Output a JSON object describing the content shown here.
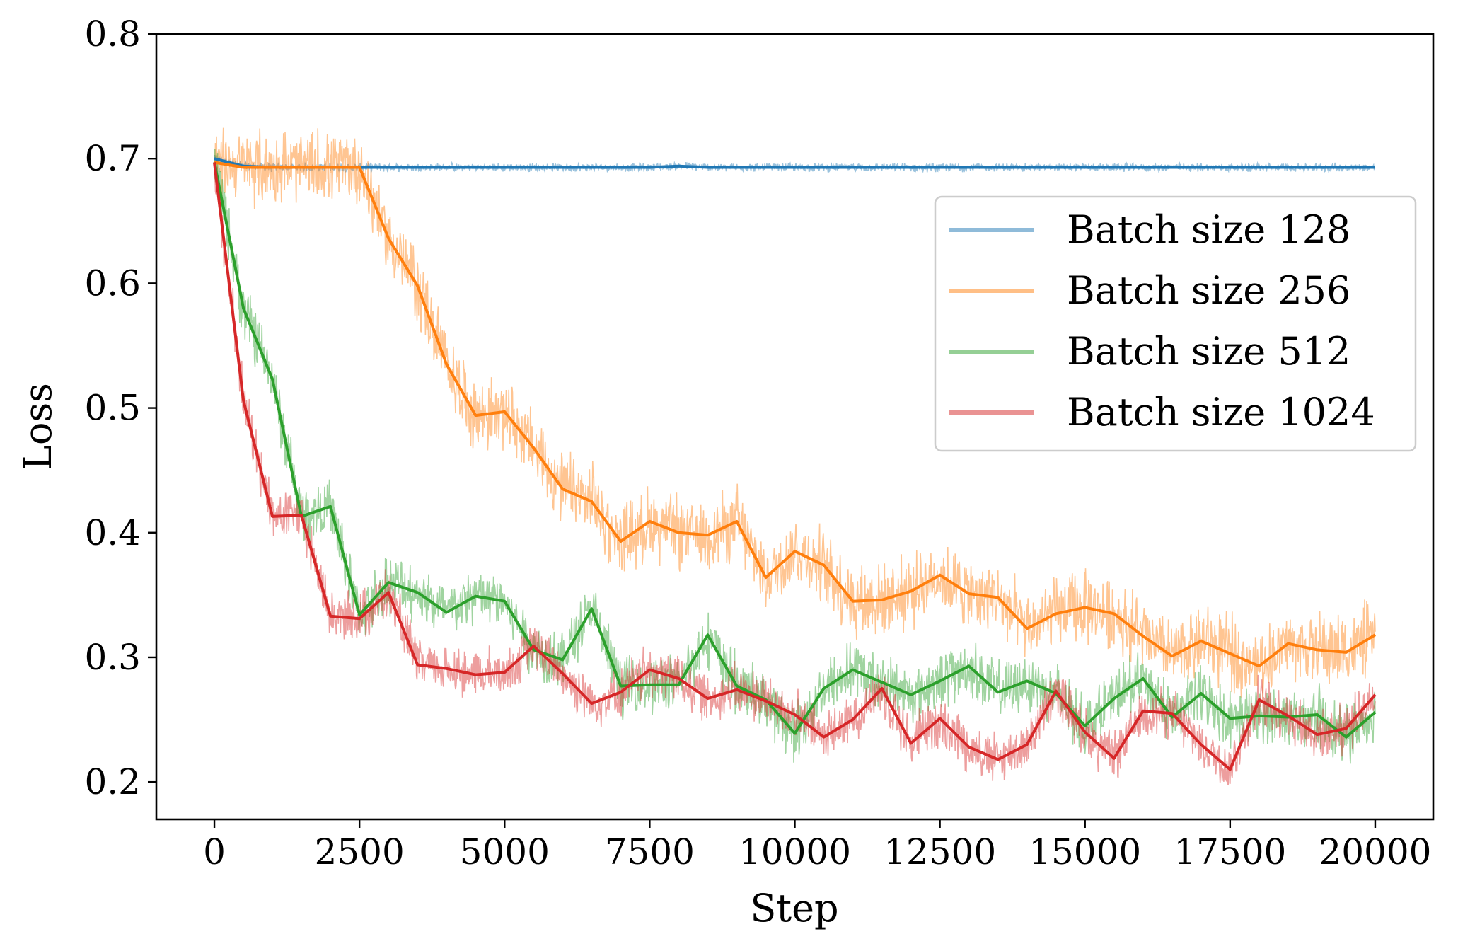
{
  "chart_data": {
    "type": "line",
    "title": "",
    "xlabel": "Step",
    "ylabel": "Loss",
    "xlim": [
      -1000,
      21000
    ],
    "ylim": [
      0.17,
      0.8
    ],
    "xticks": [
      0,
      2500,
      5000,
      7500,
      10000,
      12500,
      15000,
      17500,
      20000
    ],
    "yticks": [
      0.2,
      0.3,
      0.4,
      0.5,
      0.6,
      0.7,
      0.8
    ],
    "xtick_labels": [
      "0",
      "2500",
      "5000",
      "7500",
      "10000",
      "12500",
      "15000",
      "17500",
      "20000"
    ],
    "ytick_labels": [
      "0.2",
      "0.3",
      "0.4",
      "0.5",
      "0.6",
      "0.7",
      "0.8"
    ],
    "grid": false,
    "legend_position": "upper-right",
    "x": [
      0,
      500,
      1000,
      1500,
      2000,
      2500,
      3000,
      3500,
      4000,
      4500,
      5000,
      5500,
      6000,
      6500,
      7000,
      7500,
      8000,
      8500,
      9000,
      9500,
      10000,
      10500,
      11000,
      11500,
      12000,
      12500,
      13000,
      13500,
      14000,
      14500,
      15000,
      15500,
      16000,
      16500,
      17000,
      17500,
      18000,
      18500,
      19000,
      19500,
      20000
    ],
    "series": [
      {
        "name": "Batch size 128",
        "color": "#1f77b4",
        "values": [
          0.7,
          0.694,
          0.693,
          0.693,
          0.693,
          0.693,
          0.693,
          0.693,
          0.693,
          0.693,
          0.693,
          0.693,
          0.693,
          0.693,
          0.693,
          0.693,
          0.694,
          0.693,
          0.693,
          0.693,
          0.693,
          0.693,
          0.693,
          0.693,
          0.693,
          0.693,
          0.693,
          0.693,
          0.693,
          0.693,
          0.693,
          0.693,
          0.693,
          0.693,
          0.693,
          0.693,
          0.693,
          0.693,
          0.693,
          0.693,
          0.693
        ],
        "raw_noise": 0.004,
        "raw_floor": 0.0
      },
      {
        "name": "Batch size 256",
        "color": "#ff7f0e",
        "values": [
          0.697,
          0.693,
          0.693,
          0.693,
          0.693,
          0.693,
          0.636,
          0.598,
          0.535,
          0.494,
          0.497,
          0.468,
          0.435,
          0.425,
          0.393,
          0.409,
          0.4,
          0.398,
          0.409,
          0.364,
          0.385,
          0.374,
          0.345,
          0.346,
          0.353,
          0.366,
          0.351,
          0.348,
          0.323,
          0.335,
          0.34,
          0.335,
          0.317,
          0.301,
          0.313,
          0.303,
          0.293,
          0.311,
          0.306,
          0.304,
          0.318
        ],
        "raw_noise": 0.035,
        "raw_floor": 0.0
      },
      {
        "name": "Batch size 512",
        "color": "#2ca02c",
        "values": [
          0.697,
          0.58,
          0.523,
          0.413,
          0.421,
          0.334,
          0.36,
          0.352,
          0.336,
          0.349,
          0.345,
          0.306,
          0.298,
          0.339,
          0.277,
          0.278,
          0.278,
          0.318,
          0.277,
          0.266,
          0.239,
          0.275,
          0.29,
          0.28,
          0.27,
          0.281,
          0.293,
          0.272,
          0.281,
          0.271,
          0.245,
          0.267,
          0.283,
          0.252,
          0.271,
          0.251,
          0.253,
          0.252,
          0.254,
          0.236,
          0.256
        ],
        "raw_noise": 0.028,
        "raw_floor": 0.0
      },
      {
        "name": "Batch size 1024",
        "color": "#d62728",
        "values": [
          0.697,
          0.506,
          0.413,
          0.414,
          0.333,
          0.331,
          0.352,
          0.294,
          0.291,
          0.286,
          0.288,
          0.309,
          0.287,
          0.263,
          0.272,
          0.29,
          0.283,
          0.267,
          0.274,
          0.265,
          0.254,
          0.236,
          0.25,
          0.275,
          0.231,
          0.251,
          0.228,
          0.218,
          0.23,
          0.273,
          0.24,
          0.219,
          0.257,
          0.255,
          0.23,
          0.21,
          0.266,
          0.253,
          0.238,
          0.243,
          0.27
        ],
        "raw_noise": 0.024,
        "raw_floor": 0.0
      }
    ]
  }
}
